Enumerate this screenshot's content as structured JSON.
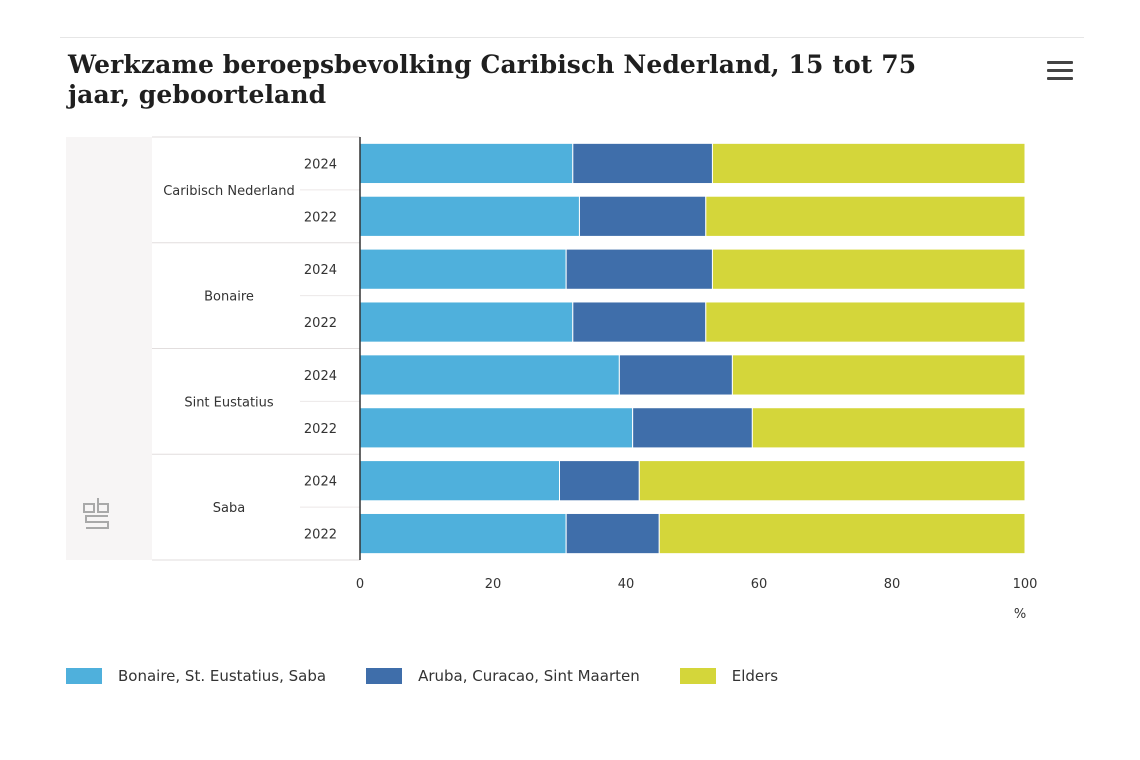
{
  "title": "Werkzame beroepsbevolking Caribisch Nederland, 15 tot 75 jaar, geboorteland",
  "menu_icon": "hamburger-menu-icon",
  "logo_text": "cbs",
  "colors": {
    "series1": "#4fb0dc",
    "series2": "#3f6eaa",
    "series3": "#d4d63a"
  },
  "chart_data": {
    "type": "bar",
    "orientation": "horizontal",
    "stacked": "percent",
    "groups": [
      {
        "name": "Caribisch Nederland",
        "categories": [
          "2024",
          "2022"
        ]
      },
      {
        "name": "Bonaire",
        "categories": [
          "2024",
          "2022"
        ]
      },
      {
        "name": "Sint Eustatius",
        "categories": [
          "2024",
          "2022"
        ]
      },
      {
        "name": "Saba",
        "categories": [
          "2024",
          "2022"
        ]
      }
    ],
    "series": [
      {
        "name": "Bonaire, St. Eustatius, Saba",
        "values": [
          32,
          33,
          31,
          32,
          39,
          41,
          30,
          31
        ]
      },
      {
        "name": "Aruba, Curacao, Sint Maarten",
        "values": [
          21,
          19,
          22,
          20,
          17,
          18,
          12,
          14
        ]
      },
      {
        "name": "Elders",
        "values": [
          47,
          48,
          47,
          48,
          44,
          41,
          58,
          55
        ]
      }
    ],
    "xlim": [
      0,
      100
    ],
    "xticks": [
      "0",
      "20",
      "40",
      "60",
      "80",
      "100"
    ],
    "xlabel": "%",
    "ylabel": "",
    "legend": "bottom-left"
  }
}
